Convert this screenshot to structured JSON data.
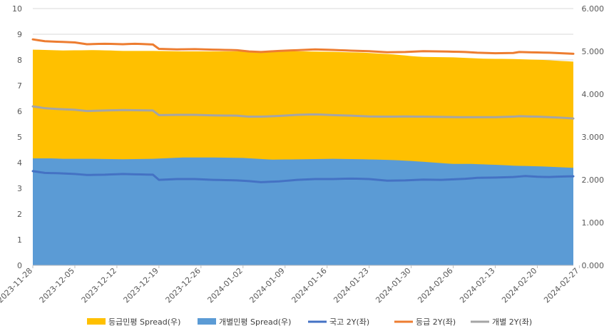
{
  "chart_data": {
    "type": "area-line-combo",
    "x_tick_labels": [
      "2023-11-28",
      "2023-12-05",
      "2023-12-12",
      "2023-12-19",
      "2023-12-26",
      "2024-01-02",
      "2024-01-09",
      "2024-01-16",
      "2024-01-23",
      "2024-01-30",
      "2024-02-06",
      "2024-02-13",
      "2024-02-20",
      "2024-02-27"
    ],
    "y_left": {
      "min": 0,
      "max": 10,
      "ticks": [
        "0",
        "1",
        "2",
        "3",
        "4",
        "5",
        "6",
        "7",
        "8",
        "9",
        "10"
      ]
    },
    "y_right": {
      "min": 0,
      "max": 6,
      "ticks": [
        "0.000",
        "1.000",
        "2.000",
        "3.000",
        "4.000",
        "5.000",
        "6.000"
      ]
    },
    "colors": {
      "grade_spread": "#FFC000",
      "indiv_spread": "#5B9BD5",
      "treasury": "#4472C4",
      "grade_yield": "#ED7D31",
      "indiv_yield": "#A5A5A5"
    },
    "legend": [
      {
        "label": "등급민평 Spread(우)",
        "kind": "box",
        "color_key": "grade_spread"
      },
      {
        "label": "개별민평 Spread(우)",
        "kind": "box",
        "color_key": "indiv_spread"
      },
      {
        "label": "국고 2Y(좌)",
        "kind": "line",
        "color_key": "treasury"
      },
      {
        "label": "등급 2Y(좌)",
        "kind": "line",
        "color_key": "grade_yield"
      },
      {
        "label": "개별 2Y(좌)",
        "kind": "line",
        "color_key": "indiv_yield"
      }
    ],
    "series": [
      {
        "name": "등급민평 Spread(우)",
        "type": "area",
        "axis": "right",
        "color_key": "grade_spread",
        "anchors": [
          [
            0,
            5.04
          ],
          [
            3,
            5.03
          ],
          [
            5,
            5.02
          ],
          [
            10,
            5.03
          ],
          [
            13,
            5.02
          ],
          [
            15,
            5.01
          ],
          [
            20,
            5.01
          ],
          [
            25,
            5.0
          ],
          [
            30,
            5.0
          ],
          [
            35,
            5.0
          ],
          [
            40,
            5.0
          ],
          [
            45,
            5.0
          ],
          [
            50,
            4.99
          ],
          [
            55,
            4.97
          ],
          [
            60,
            4.93
          ],
          [
            63,
            4.89
          ],
          [
            65,
            4.87
          ],
          [
            70,
            4.86
          ],
          [
            75,
            4.83
          ],
          [
            80,
            4.82
          ],
          [
            85,
            4.8
          ],
          [
            90,
            4.76
          ]
        ]
      },
      {
        "name": "개별민평 Spread(우)",
        "type": "area",
        "axis": "right",
        "color_key": "indiv_spread",
        "anchors": [
          [
            0,
            2.5
          ],
          [
            3,
            2.5
          ],
          [
            5,
            2.49
          ],
          [
            10,
            2.49
          ],
          [
            15,
            2.48
          ],
          [
            20,
            2.49
          ],
          [
            25,
            2.52
          ],
          [
            30,
            2.52
          ],
          [
            35,
            2.51
          ],
          [
            40,
            2.47
          ],
          [
            45,
            2.48
          ],
          [
            50,
            2.49
          ],
          [
            55,
            2.48
          ],
          [
            60,
            2.46
          ],
          [
            63,
            2.44
          ],
          [
            66,
            2.41
          ],
          [
            70,
            2.37
          ],
          [
            73,
            2.37
          ],
          [
            77,
            2.35
          ],
          [
            80,
            2.33
          ],
          [
            85,
            2.31
          ],
          [
            90,
            2.28
          ]
        ]
      },
      {
        "name": "국고 2Y(좌)",
        "type": "line",
        "axis": "left",
        "color_key": "treasury",
        "anchors": [
          [
            0,
            3.67
          ],
          [
            2,
            3.6
          ],
          [
            4,
            3.59
          ],
          [
            7,
            3.56
          ],
          [
            9,
            3.52
          ],
          [
            12,
            3.53
          ],
          [
            15,
            3.56
          ],
          [
            18,
            3.54
          ],
          [
            20,
            3.53
          ],
          [
            21,
            3.33
          ],
          [
            24,
            3.36
          ],
          [
            27,
            3.36
          ],
          [
            30,
            3.33
          ],
          [
            34,
            3.31
          ],
          [
            36,
            3.28
          ],
          [
            38,
            3.24
          ],
          [
            41,
            3.27
          ],
          [
            44,
            3.33
          ],
          [
            47,
            3.36
          ],
          [
            50,
            3.36
          ],
          [
            53,
            3.38
          ],
          [
            56,
            3.36
          ],
          [
            59,
            3.3
          ],
          [
            62,
            3.31
          ],
          [
            65,
            3.34
          ],
          [
            68,
            3.33
          ],
          [
            72,
            3.37
          ],
          [
            74,
            3.41
          ],
          [
            77,
            3.42
          ],
          [
            80,
            3.44
          ],
          [
            81,
            3.46
          ],
          [
            82,
            3.48
          ],
          [
            84,
            3.45
          ],
          [
            86,
            3.44
          ],
          [
            88,
            3.46
          ],
          [
            90,
            3.47
          ]
        ]
      },
      {
        "name": "등급 2Y(좌)",
        "type": "line",
        "axis": "left",
        "color_key": "grade_yield",
        "anchors": [
          [
            0,
            8.8
          ],
          [
            2,
            8.73
          ],
          [
            4,
            8.71
          ],
          [
            7,
            8.68
          ],
          [
            9,
            8.61
          ],
          [
            12,
            8.63
          ],
          [
            15,
            8.61
          ],
          [
            17,
            8.63
          ],
          [
            20,
            8.6
          ],
          [
            21,
            8.43
          ],
          [
            24,
            8.41
          ],
          [
            27,
            8.42
          ],
          [
            30,
            8.4
          ],
          [
            34,
            8.38
          ],
          [
            36,
            8.33
          ],
          [
            38,
            8.31
          ],
          [
            41,
            8.35
          ],
          [
            44,
            8.38
          ],
          [
            47,
            8.41
          ],
          [
            50,
            8.39
          ],
          [
            53,
            8.36
          ],
          [
            56,
            8.34
          ],
          [
            59,
            8.3
          ],
          [
            62,
            8.31
          ],
          [
            65,
            8.34
          ],
          [
            68,
            8.33
          ],
          [
            72,
            8.31
          ],
          [
            74,
            8.28
          ],
          [
            77,
            8.26
          ],
          [
            80,
            8.27
          ],
          [
            81,
            8.31
          ],
          [
            84,
            8.29
          ],
          [
            86,
            8.28
          ],
          [
            88,
            8.26
          ],
          [
            90,
            8.24
          ]
        ]
      },
      {
        "name": "개별 2Y(좌)",
        "type": "line",
        "axis": "left",
        "color_key": "indiv_yield",
        "anchors": [
          [
            0,
            6.19
          ],
          [
            2,
            6.12
          ],
          [
            4,
            6.09
          ],
          [
            7,
            6.06
          ],
          [
            9,
            6.01
          ],
          [
            12,
            6.03
          ],
          [
            15,
            6.05
          ],
          [
            17,
            6.04
          ],
          [
            20,
            6.03
          ],
          [
            21,
            5.85
          ],
          [
            24,
            5.86
          ],
          [
            27,
            5.86
          ],
          [
            30,
            5.84
          ],
          [
            34,
            5.83
          ],
          [
            36,
            5.79
          ],
          [
            38,
            5.79
          ],
          [
            41,
            5.82
          ],
          [
            44,
            5.86
          ],
          [
            47,
            5.88
          ],
          [
            50,
            5.85
          ],
          [
            53,
            5.83
          ],
          [
            56,
            5.8
          ],
          [
            59,
            5.79
          ],
          [
            62,
            5.8
          ],
          [
            65,
            5.79
          ],
          [
            68,
            5.78
          ],
          [
            72,
            5.77
          ],
          [
            74,
            5.77
          ],
          [
            77,
            5.77
          ],
          [
            80,
            5.79
          ],
          [
            81,
            5.81
          ],
          [
            84,
            5.79
          ],
          [
            86,
            5.77
          ],
          [
            88,
            5.75
          ],
          [
            90,
            5.72
          ]
        ]
      }
    ]
  }
}
